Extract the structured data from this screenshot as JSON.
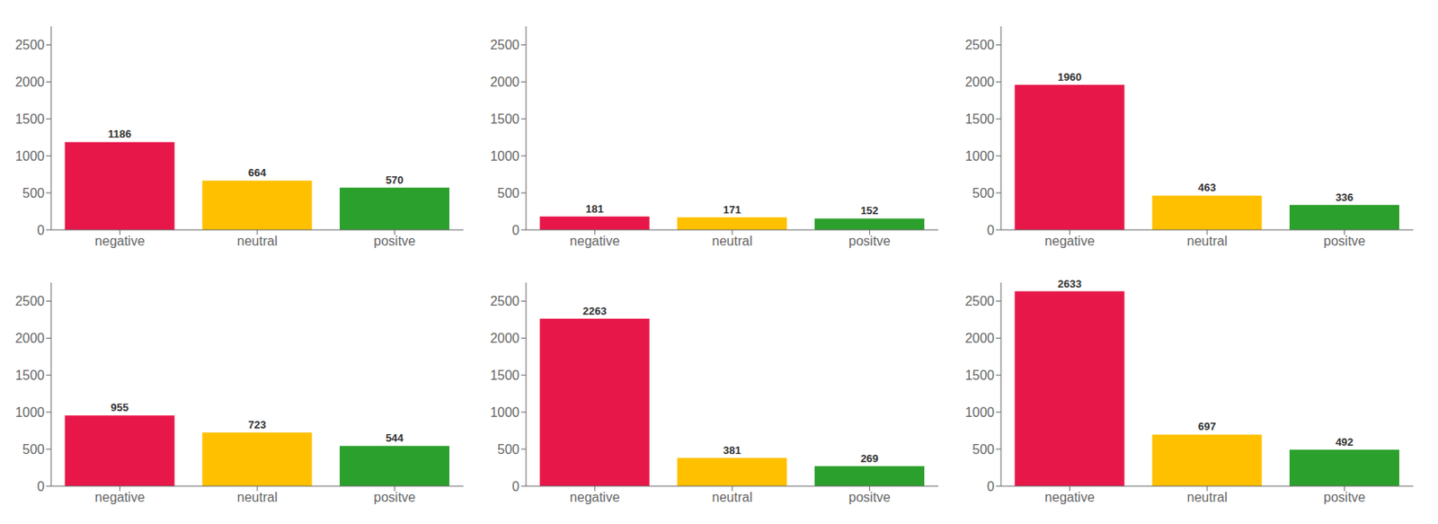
{
  "chart_data": [
    {
      "type": "bar",
      "categories": [
        "negative",
        "neutral",
        "positve"
      ],
      "values": [
        1186,
        664,
        570
      ],
      "colors": [
        "#e8174a",
        "#ffc000",
        "#2ca02c"
      ],
      "ylim": [
        0,
        2750
      ],
      "yticks": [
        0,
        500,
        1000,
        1500,
        2000,
        2500
      ],
      "data_labels": true,
      "grid": false
    },
    {
      "type": "bar",
      "categories": [
        "negative",
        "neutral",
        "positve"
      ],
      "values": [
        181,
        171,
        152
      ],
      "colors": [
        "#e8174a",
        "#ffc000",
        "#2ca02c"
      ],
      "ylim": [
        0,
        2750
      ],
      "yticks": [
        0,
        500,
        1000,
        1500,
        2000,
        2500
      ],
      "data_labels": true,
      "grid": false
    },
    {
      "type": "bar",
      "categories": [
        "negative",
        "neutral",
        "positve"
      ],
      "values": [
        1960,
        463,
        336
      ],
      "colors": [
        "#e8174a",
        "#ffc000",
        "#2ca02c"
      ],
      "ylim": [
        0,
        2750
      ],
      "yticks": [
        0,
        500,
        1000,
        1500,
        2000,
        2500
      ],
      "data_labels": true,
      "grid": false
    },
    {
      "type": "bar",
      "categories": [
        "negative",
        "neutral",
        "positve"
      ],
      "values": [
        955,
        723,
        544
      ],
      "colors": [
        "#e8174a",
        "#ffc000",
        "#2ca02c"
      ],
      "ylim": [
        0,
        2750
      ],
      "yticks": [
        0,
        500,
        1000,
        1500,
        2000,
        2500
      ],
      "data_labels": true,
      "grid": false
    },
    {
      "type": "bar",
      "categories": [
        "negative",
        "neutral",
        "positve"
      ],
      "values": [
        2263,
        381,
        269
      ],
      "colors": [
        "#e8174a",
        "#ffc000",
        "#2ca02c"
      ],
      "ylim": [
        0,
        2750
      ],
      "yticks": [
        0,
        500,
        1000,
        1500,
        2000,
        2500
      ],
      "data_labels": true,
      "grid": false
    },
    {
      "type": "bar",
      "categories": [
        "negative",
        "neutral",
        "positve"
      ],
      "values": [
        2633,
        697,
        492
      ],
      "colors": [
        "#e8174a",
        "#ffc000",
        "#2ca02c"
      ],
      "ylim": [
        0,
        2750
      ],
      "yticks": [
        0,
        500,
        1000,
        1500,
        2000,
        2500
      ],
      "data_labels": true,
      "grid": false
    }
  ]
}
